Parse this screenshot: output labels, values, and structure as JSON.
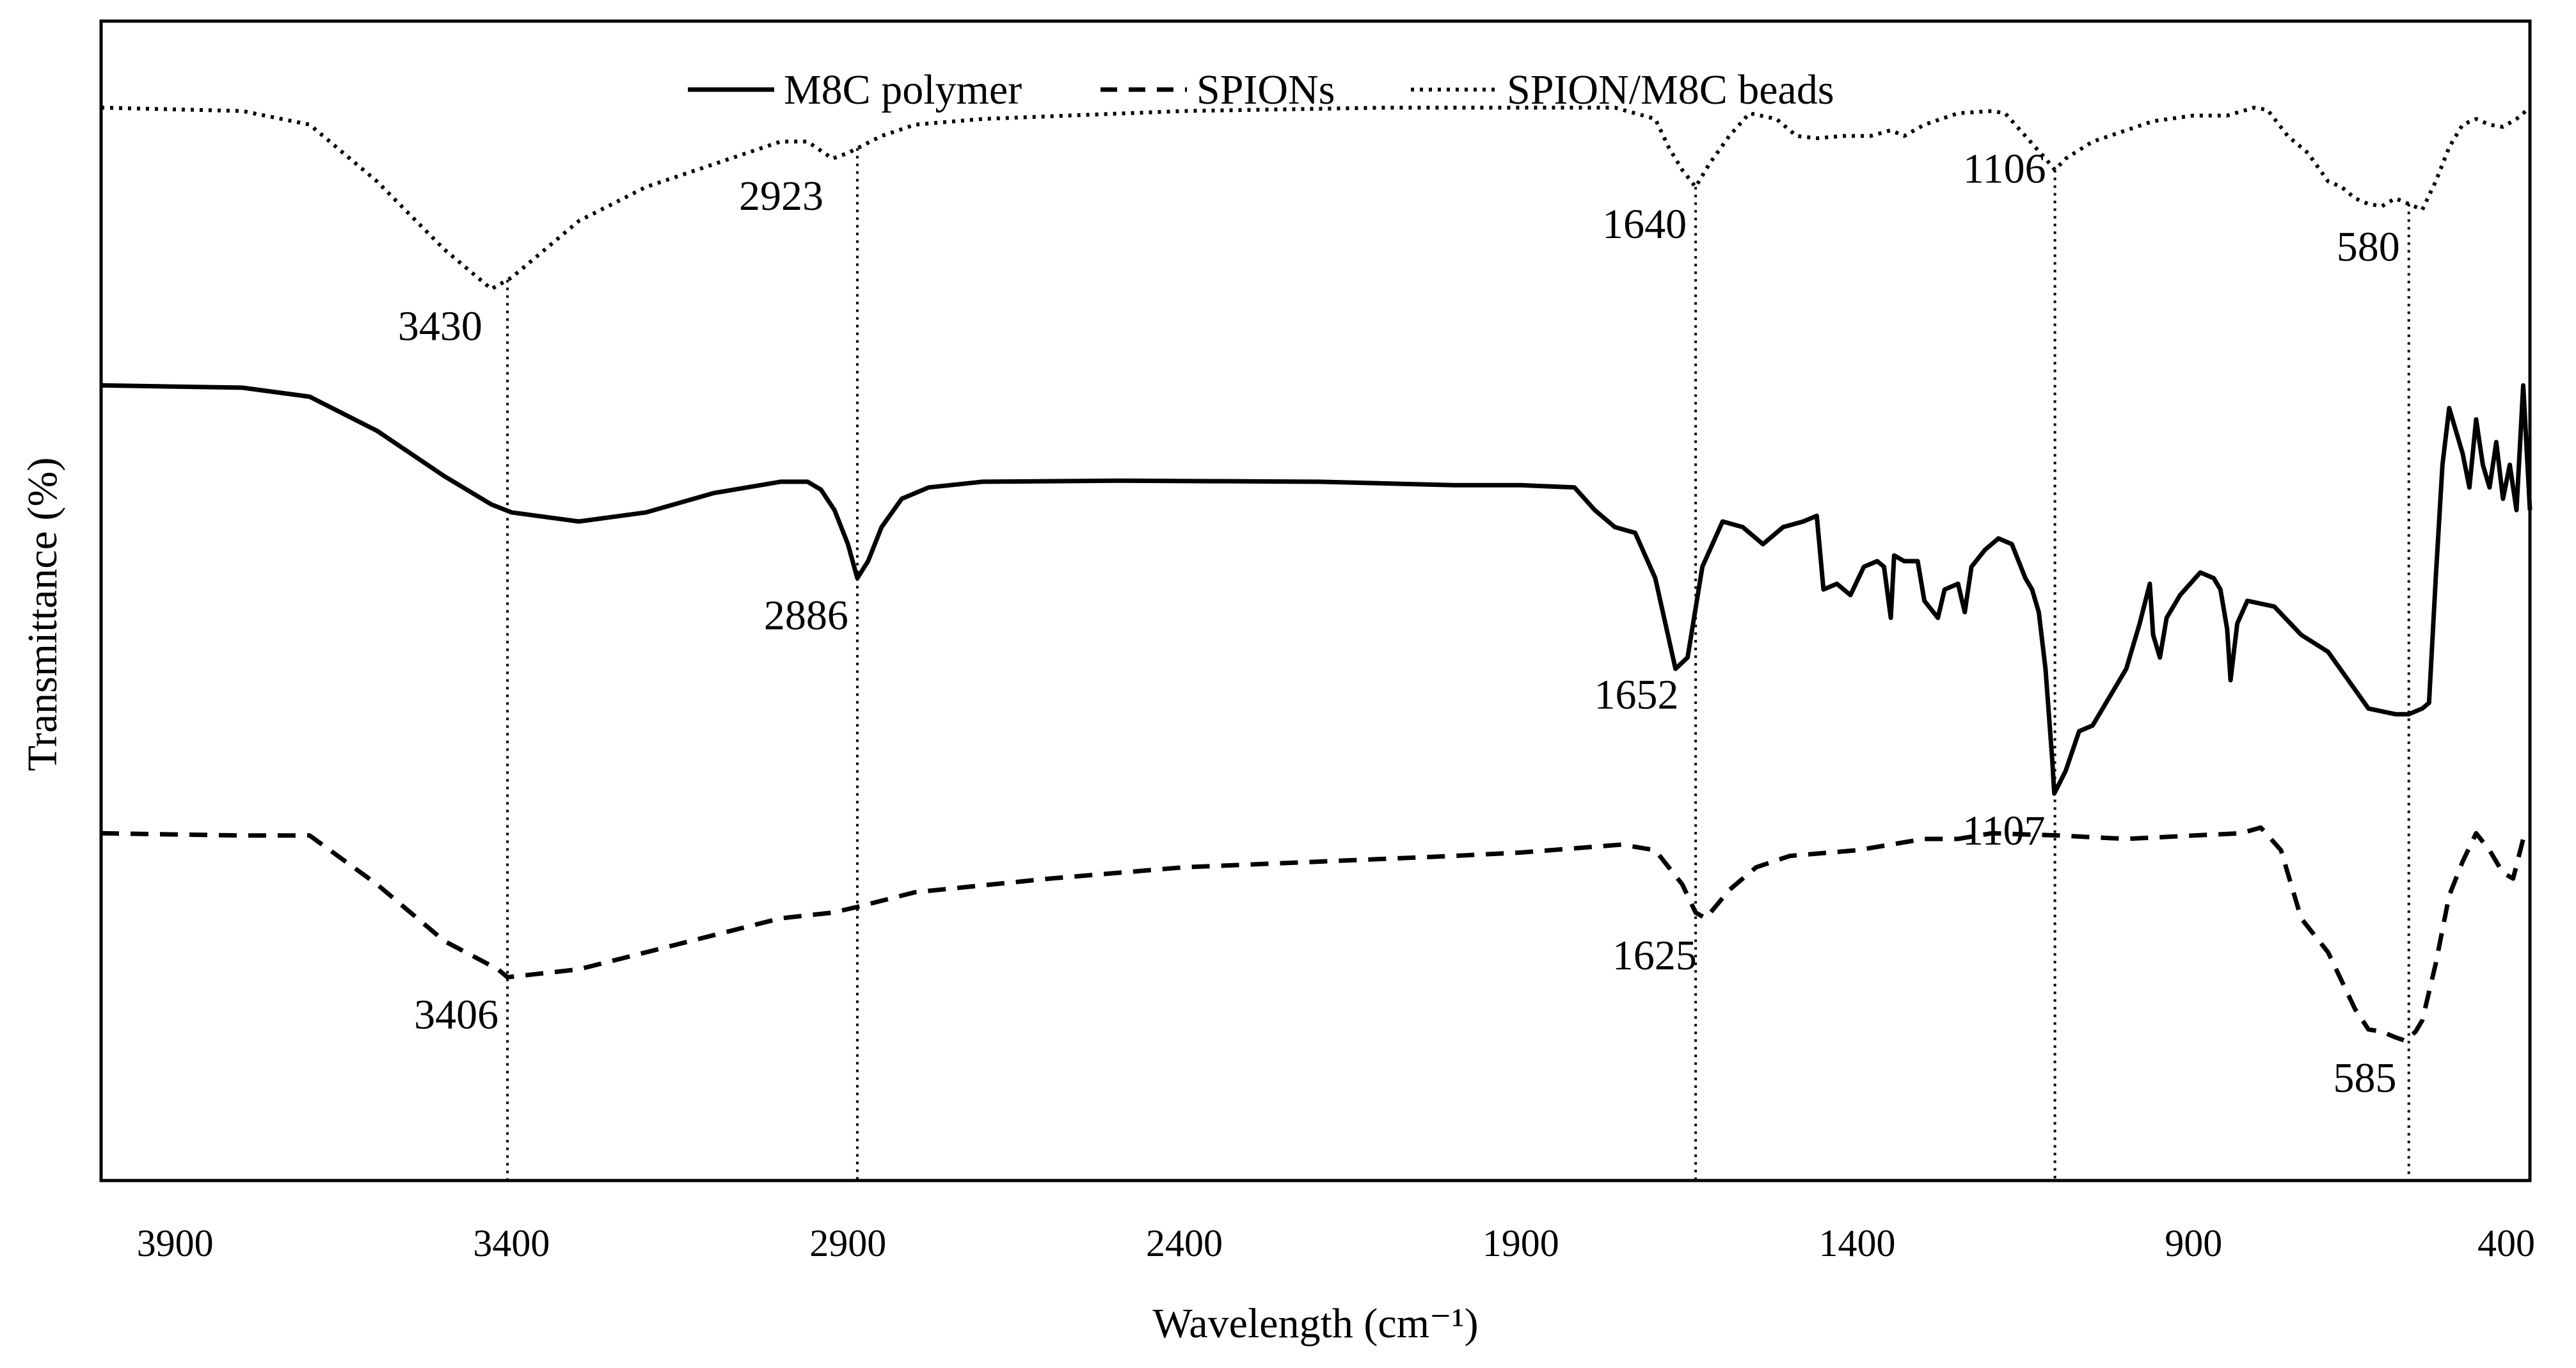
{
  "chart_data": {
    "type": "line",
    "title": "",
    "xlabel": "Wavelength (cm⁻¹)",
    "ylabel": "Transmittance (%)",
    "xlim": [
      4010,
      400
    ],
    "x_reversed": true,
    "ylim": [
      0,
      100
    ],
    "y_ticks_shown": false,
    "x_ticks": [
      3900,
      3400,
      2900,
      2400,
      1900,
      1400,
      900,
      400
    ],
    "x_tick_labels": [
      "3900",
      "3400",
      "2900",
      "2400",
      "1900",
      "1400",
      "900",
      "400"
    ],
    "legend_position": "top-center",
    "series": [
      {
        "name": "M8C polymer",
        "style": "solid",
        "points": [
          [
            4010,
            69
          ],
          [
            3800,
            68.8
          ],
          [
            3700,
            68
          ],
          [
            3600,
            65
          ],
          [
            3500,
            61
          ],
          [
            3430,
            58.5
          ],
          [
            3400,
            57.8
          ],
          [
            3300,
            57
          ],
          [
            3200,
            57.8
          ],
          [
            3100,
            59.5
          ],
          [
            3000,
            60.5
          ],
          [
            2960,
            60.5
          ],
          [
            2940,
            59.8
          ],
          [
            2920,
            58
          ],
          [
            2900,
            55
          ],
          [
            2886,
            52
          ],
          [
            2870,
            53.5
          ],
          [
            2850,
            56.5
          ],
          [
            2820,
            59
          ],
          [
            2780,
            60
          ],
          [
            2700,
            60.5
          ],
          [
            2500,
            60.6
          ],
          [
            2200,
            60.5
          ],
          [
            2000,
            60.2
          ],
          [
            1900,
            60.2
          ],
          [
            1820,
            60
          ],
          [
            1790,
            58
          ],
          [
            1760,
            56.5
          ],
          [
            1730,
            56
          ],
          [
            1700,
            52
          ],
          [
            1670,
            44
          ],
          [
            1652,
            45
          ],
          [
            1630,
            53
          ],
          [
            1600,
            57
          ],
          [
            1570,
            56.5
          ],
          [
            1540,
            55
          ],
          [
            1510,
            56.5
          ],
          [
            1480,
            57
          ],
          [
            1460,
            57.5
          ],
          [
            1450,
            51
          ],
          [
            1430,
            51.5
          ],
          [
            1410,
            50.5
          ],
          [
            1390,
            53
          ],
          [
            1370,
            53.5
          ],
          [
            1360,
            53
          ],
          [
            1350,
            48.5
          ],
          [
            1345,
            54
          ],
          [
            1330,
            53.5
          ],
          [
            1310,
            53.5
          ],
          [
            1300,
            50
          ],
          [
            1280,
            48.5
          ],
          [
            1270,
            51
          ],
          [
            1250,
            51.5
          ],
          [
            1240,
            49
          ],
          [
            1230,
            53
          ],
          [
            1210,
            54.5
          ],
          [
            1190,
            55.5
          ],
          [
            1170,
            55
          ],
          [
            1150,
            52
          ],
          [
            1140,
            51
          ],
          [
            1130,
            49
          ],
          [
            1120,
            44
          ],
          [
            1110,
            36
          ],
          [
            1107,
            33
          ],
          [
            1090,
            35
          ],
          [
            1070,
            38.5
          ],
          [
            1050,
            39
          ],
          [
            1040,
            40
          ],
          [
            1030,
            41
          ],
          [
            1000,
            44
          ],
          [
            980,
            48
          ],
          [
            965,
            51.5
          ],
          [
            960,
            47
          ],
          [
            950,
            45
          ],
          [
            940,
            48.5
          ],
          [
            920,
            50.5
          ],
          [
            890,
            52.5
          ],
          [
            870,
            52
          ],
          [
            860,
            51
          ],
          [
            850,
            47.5
          ],
          [
            845,
            43
          ],
          [
            835,
            48
          ],
          [
            820,
            50
          ],
          [
            780,
            49.5
          ],
          [
            740,
            47
          ],
          [
            700,
            45.5
          ],
          [
            670,
            43
          ],
          [
            640,
            40.5
          ],
          [
            600,
            40
          ],
          [
            580,
            40
          ],
          [
            560,
            40.5
          ],
          [
            550,
            41
          ],
          [
            540,
            52
          ],
          [
            530,
            62
          ],
          [
            520,
            67
          ],
          [
            510,
            65
          ],
          [
            500,
            63
          ],
          [
            490,
            60
          ],
          [
            480,
            66
          ],
          [
            470,
            62
          ],
          [
            460,
            60
          ],
          [
            450,
            64
          ],
          [
            440,
            59
          ],
          [
            430,
            62
          ],
          [
            420,
            58
          ],
          [
            410,
            69
          ],
          [
            400,
            58
          ]
        ]
      },
      {
        "name": "SPIONs",
        "style": "dashed",
        "points": [
          [
            4010,
            29.5
          ],
          [
            3800,
            29.3
          ],
          [
            3700,
            29.3
          ],
          [
            3600,
            25
          ],
          [
            3500,
            20
          ],
          [
            3420,
            17.5
          ],
          [
            3406,
            16.8
          ],
          [
            3300,
            17.5
          ],
          [
            3200,
            19
          ],
          [
            3100,
            20.5
          ],
          [
            3000,
            22
          ],
          [
            2923,
            22.5
          ],
          [
            2886,
            23
          ],
          [
            2800,
            24.3
          ],
          [
            2600,
            25.5
          ],
          [
            2400,
            26.5
          ],
          [
            2200,
            27
          ],
          [
            2000,
            27.5
          ],
          [
            1900,
            27.8
          ],
          [
            1750,
            28.5
          ],
          [
            1700,
            28
          ],
          [
            1660,
            25
          ],
          [
            1640,
            22.5
          ],
          [
            1625,
            22
          ],
          [
            1590,
            24.5
          ],
          [
            1550,
            26.5
          ],
          [
            1500,
            27.5
          ],
          [
            1400,
            28
          ],
          [
            1300,
            29
          ],
          [
            1250,
            29
          ],
          [
            1200,
            29.5
          ],
          [
            1100,
            29.3
          ],
          [
            1000,
            29
          ],
          [
            900,
            29.3
          ],
          [
            830,
            29.5
          ],
          [
            800,
            30
          ],
          [
            770,
            28
          ],
          [
            740,
            22
          ],
          [
            700,
            19
          ],
          [
            680,
            16.5
          ],
          [
            660,
            14
          ],
          [
            640,
            12.2
          ],
          [
            620,
            12
          ],
          [
            600,
            11.5
          ],
          [
            585,
            11.2
          ],
          [
            570,
            12
          ],
          [
            560,
            13
          ],
          [
            540,
            18
          ],
          [
            520,
            24
          ],
          [
            500,
            27
          ],
          [
            480,
            29.5
          ],
          [
            460,
            28
          ],
          [
            440,
            26
          ],
          [
            425,
            25.5
          ],
          [
            410,
            29
          ],
          [
            400,
            29.5
          ]
        ]
      },
      {
        "name": "SPION/M8C beads",
        "style": "dotted",
        "points": [
          [
            4010,
            93.5
          ],
          [
            3800,
            93.2
          ],
          [
            3700,
            92
          ],
          [
            3600,
            87
          ],
          [
            3500,
            81
          ],
          [
            3430,
            77.5
          ],
          [
            3400,
            78.5
          ],
          [
            3300,
            83.5
          ],
          [
            3200,
            86.5
          ],
          [
            3100,
            88.5
          ],
          [
            3000,
            90.5
          ],
          [
            2960,
            90.5
          ],
          [
            2923,
            89
          ],
          [
            2900,
            89.5
          ],
          [
            2850,
            91
          ],
          [
            2800,
            92
          ],
          [
            2700,
            92.5
          ],
          [
            2400,
            93.2
          ],
          [
            2100,
            93.5
          ],
          [
            1900,
            93.5
          ],
          [
            1760,
            93.5
          ],
          [
            1700,
            92.5
          ],
          [
            1680,
            90
          ],
          [
            1660,
            88
          ],
          [
            1640,
            86.5
          ],
          [
            1620,
            88.5
          ],
          [
            1590,
            91
          ],
          [
            1560,
            93
          ],
          [
            1520,
            92.5
          ],
          [
            1490,
            91
          ],
          [
            1460,
            90.8
          ],
          [
            1420,
            91
          ],
          [
            1380,
            91
          ],
          [
            1350,
            91.5
          ],
          [
            1330,
            91
          ],
          [
            1300,
            92
          ],
          [
            1250,
            93
          ],
          [
            1200,
            93.2
          ],
          [
            1180,
            93
          ],
          [
            1150,
            91
          ],
          [
            1120,
            89
          ],
          [
            1106,
            88
          ],
          [
            1090,
            89
          ],
          [
            1050,
            90.5
          ],
          [
            1000,
            91.5
          ],
          [
            960,
            92.3
          ],
          [
            900,
            92.8
          ],
          [
            850,
            92.8
          ],
          [
            810,
            93.5
          ],
          [
            790,
            93.3
          ],
          [
            760,
            91
          ],
          [
            730,
            89.5
          ],
          [
            700,
            87
          ],
          [
            680,
            86.5
          ],
          [
            660,
            85.5
          ],
          [
            640,
            85
          ],
          [
            620,
            84.8
          ],
          [
            600,
            85.5
          ],
          [
            580,
            85
          ],
          [
            560,
            84.5
          ],
          [
            540,
            87
          ],
          [
            520,
            90
          ],
          [
            500,
            92
          ],
          [
            480,
            92.5
          ],
          [
            460,
            92
          ],
          [
            440,
            91.8
          ],
          [
            420,
            92.5
          ],
          [
            400,
            93.5
          ]
        ]
      }
    ],
    "annotations": [
      {
        "text": "3430",
        "x": 3430,
        "y": 77.5,
        "placement": "below-left"
      },
      {
        "text": "2923",
        "x": 2923,
        "y": 89,
        "placement": "below-left"
      },
      {
        "text": "1640",
        "x": 1640,
        "y": 86.5,
        "placement": "below-left"
      },
      {
        "text": "1106",
        "x": 1106,
        "y": 88,
        "placement": "left"
      },
      {
        "text": "580",
        "x": 580,
        "y": 84.5,
        "placement": "below-left"
      },
      {
        "text": "2886",
        "x": 2886,
        "y": 52,
        "placement": "below-left"
      },
      {
        "text": "1652",
        "x": 1652,
        "y": 45,
        "placement": "below-left"
      },
      {
        "text": "1107",
        "x": 1107,
        "y": 33,
        "placement": "below-left"
      },
      {
        "text": "3406",
        "x": 3406,
        "y": 16.8,
        "placement": "below-left"
      },
      {
        "text": "1625",
        "x": 1625,
        "y": 22,
        "placement": "below-left"
      },
      {
        "text": "585",
        "x": 585,
        "y": 11.2,
        "placement": "below-left"
      }
    ],
    "reference_lines": [
      3406,
      2886,
      1640,
      1106,
      580
    ]
  }
}
